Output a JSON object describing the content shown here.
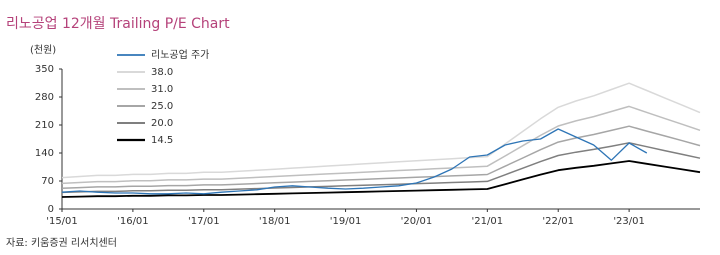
{
  "chart_data": {
    "type": "line",
    "title": "리노공업  12개월  Trailing P/E Chart",
    "unit": "(천원)",
    "source": "자료: 키움증권 리서치센터",
    "categories": [
      "'15/01",
      null,
      null,
      null,
      "'16/01",
      null,
      null,
      null,
      "'17/01",
      null,
      null,
      null,
      "'18/01",
      null,
      null,
      null,
      "'19/01",
      null,
      null,
      null,
      "'20/01",
      null,
      null,
      null,
      "'21/01",
      null,
      null,
      null,
      "'22/01",
      null,
      null,
      null,
      "'23/01",
      null,
      null,
      null,
      null
    ],
    "ylim": [
      0,
      350
    ],
    "yticks": [
      0,
      70,
      140,
      210,
      280,
      350
    ],
    "legend": "upper left",
    "series": [
      {
        "name": "리노공업 주가",
        "color": "#2e75b6",
        "width": 1.3,
        "values": [
          42,
          45,
          42,
          40,
          40,
          38,
          38,
          40,
          38,
          42,
          45,
          48,
          55,
          58,
          55,
          52,
          50,
          52,
          55,
          58,
          65,
          80,
          100,
          130,
          135,
          160,
          170,
          175,
          200,
          180,
          160,
          122,
          165,
          140,
          null,
          null,
          null
        ]
      },
      {
        "name": "38.0",
        "color": "#d9d9d9",
        "width": 1.5,
        "values": [
          78.6,
          81.2,
          83.9,
          83.9,
          86.5,
          86.5,
          89.1,
          89.1,
          91.7,
          91.7,
          94.3,
          97,
          99.6,
          102.2,
          104.8,
          107.5,
          110.1,
          112.7,
          115.3,
          117.9,
          120.6,
          123.2,
          125.8,
          128.4,
          131,
          162.5,
          193.9,
          225.4,
          254.2,
          269.9,
          283,
          298.8,
          314.5,
          296.2,
          277.8,
          259.5,
          241.1
        ]
      },
      {
        "name": "31.0",
        "color": "#bfbfbf",
        "width": 1.5,
        "values": [
          64.1,
          66.3,
          68.4,
          68.4,
          70.6,
          70.6,
          72.7,
          72.7,
          74.8,
          74.8,
          77,
          79.1,
          81.2,
          83.4,
          85.5,
          87.7,
          89.8,
          91.9,
          94.1,
          96.2,
          98.3,
          100.5,
          102.6,
          104.8,
          106.9,
          132.6,
          158.2,
          183.9,
          207.4,
          220.2,
          230.9,
          243.7,
          256.6,
          241.6,
          226.6,
          211.7,
          196.7
        ]
      },
      {
        "name": "25.0",
        "color": "#a6a6a6",
        "width": 1.5,
        "values": [
          51.7,
          53.4,
          55.2,
          55.2,
          56.9,
          56.9,
          58.6,
          58.6,
          60.3,
          60.3,
          62.1,
          63.8,
          65.5,
          67.2,
          69,
          70.7,
          72.4,
          74.1,
          75.9,
          77.6,
          79.3,
          81,
          82.8,
          84.5,
          86.2,
          106.9,
          127.6,
          148.3,
          167.2,
          177.6,
          186.2,
          196.6,
          206.9,
          194.8,
          182.8,
          170.7,
          158.6
        ]
      },
      {
        "name": "20.0",
        "color": "#7f7f7f",
        "width": 1.5,
        "values": [
          41.4,
          42.8,
          44.1,
          44.1,
          45.5,
          45.5,
          46.9,
          46.9,
          48.3,
          48.3,
          49.7,
          51,
          52.4,
          53.8,
          55.2,
          56.6,
          57.9,
          59.3,
          60.7,
          62.1,
          63.4,
          64.8,
          66.2,
          67.6,
          69,
          85.5,
          102,
          118.6,
          133.8,
          142,
          149,
          157,
          165.5,
          155.8,
          146,
          136.5,
          126.9
        ]
      },
      {
        "name": "14.5",
        "color": "#000000",
        "width": 1.8,
        "values": [
          30,
          31,
          32,
          32,
          33,
          33,
          34,
          34,
          35,
          35,
          36,
          37,
          38,
          39,
          40,
          41,
          42,
          43,
          44,
          45,
          46,
          47,
          48,
          49,
          50,
          62,
          74,
          86,
          97,
          103,
          108,
          114,
          120,
          113,
          106,
          99,
          92
        ]
      }
    ]
  }
}
